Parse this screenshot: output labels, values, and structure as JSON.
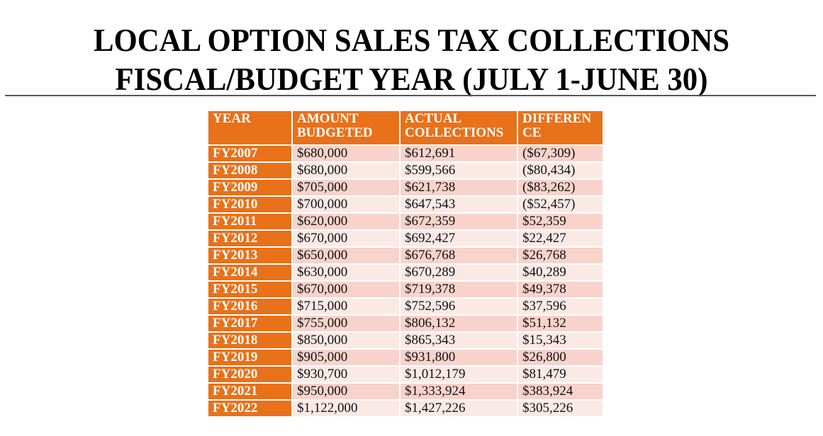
{
  "title": {
    "line1": "LOCAL OPTION SALES TAX COLLECTIONS",
    "line2": "FISCAL/BUDGET YEAR (JULY 1-JUNE 30)"
  },
  "colors": {
    "header": "#E8711A",
    "row_odd": "#F8D3CB",
    "row_even": "#FBE9E6"
  },
  "table": {
    "headers": [
      {
        "line1": "YEAR",
        "line2": ""
      },
      {
        "line1": "AMOUNT",
        "line2": "BUDGETED"
      },
      {
        "line1": "ACTUAL",
        "line2": "COLLECTIONS"
      },
      {
        "line1": "DIFFEREN",
        "line2": "CE"
      }
    ],
    "rows": [
      [
        "FY2007",
        "$680,000",
        "$612,691",
        "($67,309)"
      ],
      [
        "FY2008",
        "$680,000",
        "$599,566",
        "($80,434)"
      ],
      [
        "FY2009",
        "$705,000",
        "$621,738",
        "($83,262)"
      ],
      [
        "FY2010",
        "$700,000",
        "$647,543",
        "($52,457)"
      ],
      [
        "FY2011",
        "$620,000",
        "$672,359",
        "$52,359"
      ],
      [
        "FY2012",
        "$670,000",
        "$692,427",
        "$22,427"
      ],
      [
        "FY2013",
        "$650,000",
        "$676,768",
        "$26,768"
      ],
      [
        "FY2014",
        "$630,000",
        "$670,289",
        "$40,289"
      ],
      [
        "FY2015",
        "$670,000",
        "$719,378",
        "$49,378"
      ],
      [
        "FY2016",
        "$715,000",
        "$752,596",
        "$37,596"
      ],
      [
        "FY2017",
        "$755,000",
        "$806,132",
        "$51,132"
      ],
      [
        "FY2018",
        "$850,000",
        "$865,343",
        "$15,343"
      ],
      [
        "FY2019",
        "$905,000",
        "$931,800",
        "$26,800"
      ],
      [
        "FY2020",
        "$930,700",
        "$1,012,179",
        "$81,479"
      ],
      [
        "FY2021",
        "$950,000",
        "$1,333,924",
        "$383,924"
      ],
      [
        "FY2022",
        "$1,122,000",
        "$1,427,226",
        "$305,226"
      ]
    ]
  }
}
